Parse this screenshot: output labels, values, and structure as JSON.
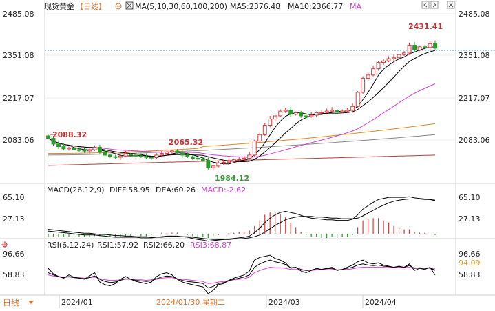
{
  "header": {
    "title": "现货黄金",
    "period": "【日线】",
    "ma_label": "MA(5,10,30,60,100,200)",
    "ma5": "MA5:2376.48",
    "ma10": "MA10:2366.77",
    "ma_more": "MA"
  },
  "price_axis": {
    "ticks_left": [
      "2485.08",
      "2351.08",
      "2217.07",
      "2083.06"
    ],
    "ticks_right": [
      "2485.08",
      "2351.08",
      "2217.07",
      "2083.06"
    ]
  },
  "annotations": {
    "high1": "2088.32",
    "high2": "2065.32",
    "low1": "1984.12",
    "high3": "2431.41"
  },
  "macd": {
    "label": "MACD(26,12,9)",
    "diff": "DIFF:58.95",
    "dea": "DEA:60.26",
    "macd": "MACD:-2.62",
    "ticks_left": [
      "65.10",
      "27.13"
    ],
    "ticks_right": [
      "65.10",
      "27.13"
    ]
  },
  "rsi": {
    "label": "RSI(6,12,24)",
    "rsi1": "RSI1:57.92",
    "rsi2": "RSI2:66.20",
    "rsi3": "RSI3:68.87",
    "ticks_left": [
      "96.66",
      "58.83"
    ],
    "ticks_right": [
      "96.66",
      "94.09",
      "58.83"
    ]
  },
  "footer": {
    "period_button": "日线",
    "dates": [
      "2024/01",
      "2024/03",
      "2024/04"
    ],
    "cursor_date": "2024/01/30 星期二"
  },
  "colors": {
    "up": "#d93a3a",
    "down": "#2a9a2a",
    "ma5": "#000000",
    "ma10": "#000000",
    "ma30": "#d43fd4",
    "ma60": "#e08a1e",
    "ma100": "#888888",
    "ma200": "#b04040"
  },
  "chart_data": {
    "type": "candlestick",
    "price": {
      "closes": [
        2088.32,
        2070,
        2062,
        2055,
        2058,
        2052,
        2050,
        2048,
        2052,
        2060,
        2045,
        2035,
        2030,
        2028,
        2032,
        2038,
        2035,
        2032,
        2030,
        2028,
        2027,
        2035,
        2040,
        2045,
        2048,
        2042,
        2035,
        2030,
        2025,
        2022,
        2018,
        1995,
        2000,
        2010,
        2012,
        2015,
        2020,
        2022,
        2025,
        2035,
        2080,
        2100,
        2130,
        2150,
        2160,
        2175,
        2178,
        2165,
        2170,
        2160,
        2158,
        2162,
        2170,
        2172,
        2175,
        2178,
        2172,
        2175,
        2178,
        2190,
        2235,
        2280,
        2290,
        2310,
        2330,
        2335,
        2342,
        2345,
        2355,
        2360,
        2385,
        2370,
        2380,
        2378,
        2390,
        2376
      ]
    },
    "macd": {
      "diff": [
        5,
        4,
        3,
        2,
        1,
        0,
        -1,
        -2,
        -2,
        -2,
        -3,
        -4,
        -5,
        -6,
        -6,
        -6,
        -6,
        -6,
        -7,
        -7,
        -7,
        -6,
        -5,
        -4,
        -4,
        -4,
        -5,
        -6,
        -8,
        -10,
        -11,
        -13,
        -12,
        -11,
        -10,
        -9,
        -8,
        -7,
        -6,
        -4,
        2,
        10,
        20,
        28,
        34,
        38,
        40,
        38,
        36,
        33,
        30,
        28,
        27,
        26,
        25,
        25,
        24,
        24,
        24,
        26,
        34,
        44,
        50,
        56,
        61,
        63,
        65,
        65,
        65,
        65,
        66,
        64,
        63,
        62,
        61,
        59
      ],
      "dea": [
        8,
        7,
        6,
        5,
        4,
        3,
        2,
        1,
        1,
        0,
        -1,
        -1,
        -2,
        -3,
        -3,
        -4,
        -4,
        -5,
        -5,
        -5,
        -6,
        -6,
        -6,
        -5,
        -5,
        -5,
        -5,
        -5,
        -6,
        -7,
        -8,
        -9,
        -10,
        -10,
        -10,
        -10,
        -9,
        -9,
        -8,
        -7,
        -5,
        -2,
        3,
        9,
        15,
        20,
        25,
        28,
        30,
        31,
        31,
        31,
        30,
        30,
        29,
        28,
        28,
        27,
        27,
        27,
        28,
        32,
        37,
        42,
        47,
        51,
        55,
        58,
        60,
        61,
        62,
        62,
        62,
        61,
        61,
        60
      ]
    },
    "rsi": {
      "rsi1": [
        70,
        60,
        55,
        52,
        58,
        54,
        52,
        50,
        56,
        62,
        45,
        40,
        38,
        42,
        50,
        55,
        50,
        46,
        44,
        42,
        45,
        55,
        60,
        62,
        58,
        50,
        45,
        42,
        40,
        38,
        36,
        22,
        30,
        40,
        42,
        48,
        52,
        55,
        58,
        65,
        85,
        90,
        92,
        94,
        88,
        85,
        80,
        70,
        72,
        65,
        62,
        66,
        70,
        68,
        70,
        72,
        66,
        68,
        72,
        76,
        82,
        85,
        80,
        78,
        80,
        76,
        74,
        72,
        74,
        72,
        78,
        66,
        70,
        68,
        72,
        57.92
      ],
      "rsi2": [
        62,
        58,
        55,
        53,
        55,
        53,
        52,
        51,
        53,
        56,
        50,
        46,
        44,
        45,
        48,
        51,
        50,
        48,
        47,
        46,
        47,
        51,
        54,
        56,
        55,
        51,
        48,
        46,
        45,
        44,
        42,
        34,
        37,
        42,
        44,
        47,
        50,
        52,
        54,
        58,
        72,
        78,
        82,
        85,
        82,
        80,
        77,
        71,
        72,
        68,
        66,
        67,
        69,
        68,
        69,
        70,
        67,
        68,
        70,
        72,
        76,
        78,
        76,
        75,
        76,
        74,
        73,
        72,
        73,
        72,
        75,
        70,
        71,
        70,
        71,
        66.2
      ],
      "rsi3": [
        58,
        56,
        55,
        54,
        54,
        53,
        53,
        52,
        53,
        54,
        51,
        49,
        48,
        48,
        49,
        50,
        50,
        49,
        49,
        48,
        49,
        50,
        52,
        53,
        53,
        51,
        50,
        49,
        48,
        47,
        46,
        42,
        43,
        45,
        46,
        48,
        49,
        50,
        51,
        54,
        62,
        66,
        69,
        72,
        71,
        71,
        70,
        68,
        68,
        67,
        66,
        66,
        67,
        67,
        67,
        68,
        67,
        67,
        68,
        69,
        71,
        72,
        72,
        72,
        72,
        72,
        71,
        71,
        71,
        71,
        72,
        70,
        70,
        70,
        70,
        68.87
      ]
    }
  }
}
